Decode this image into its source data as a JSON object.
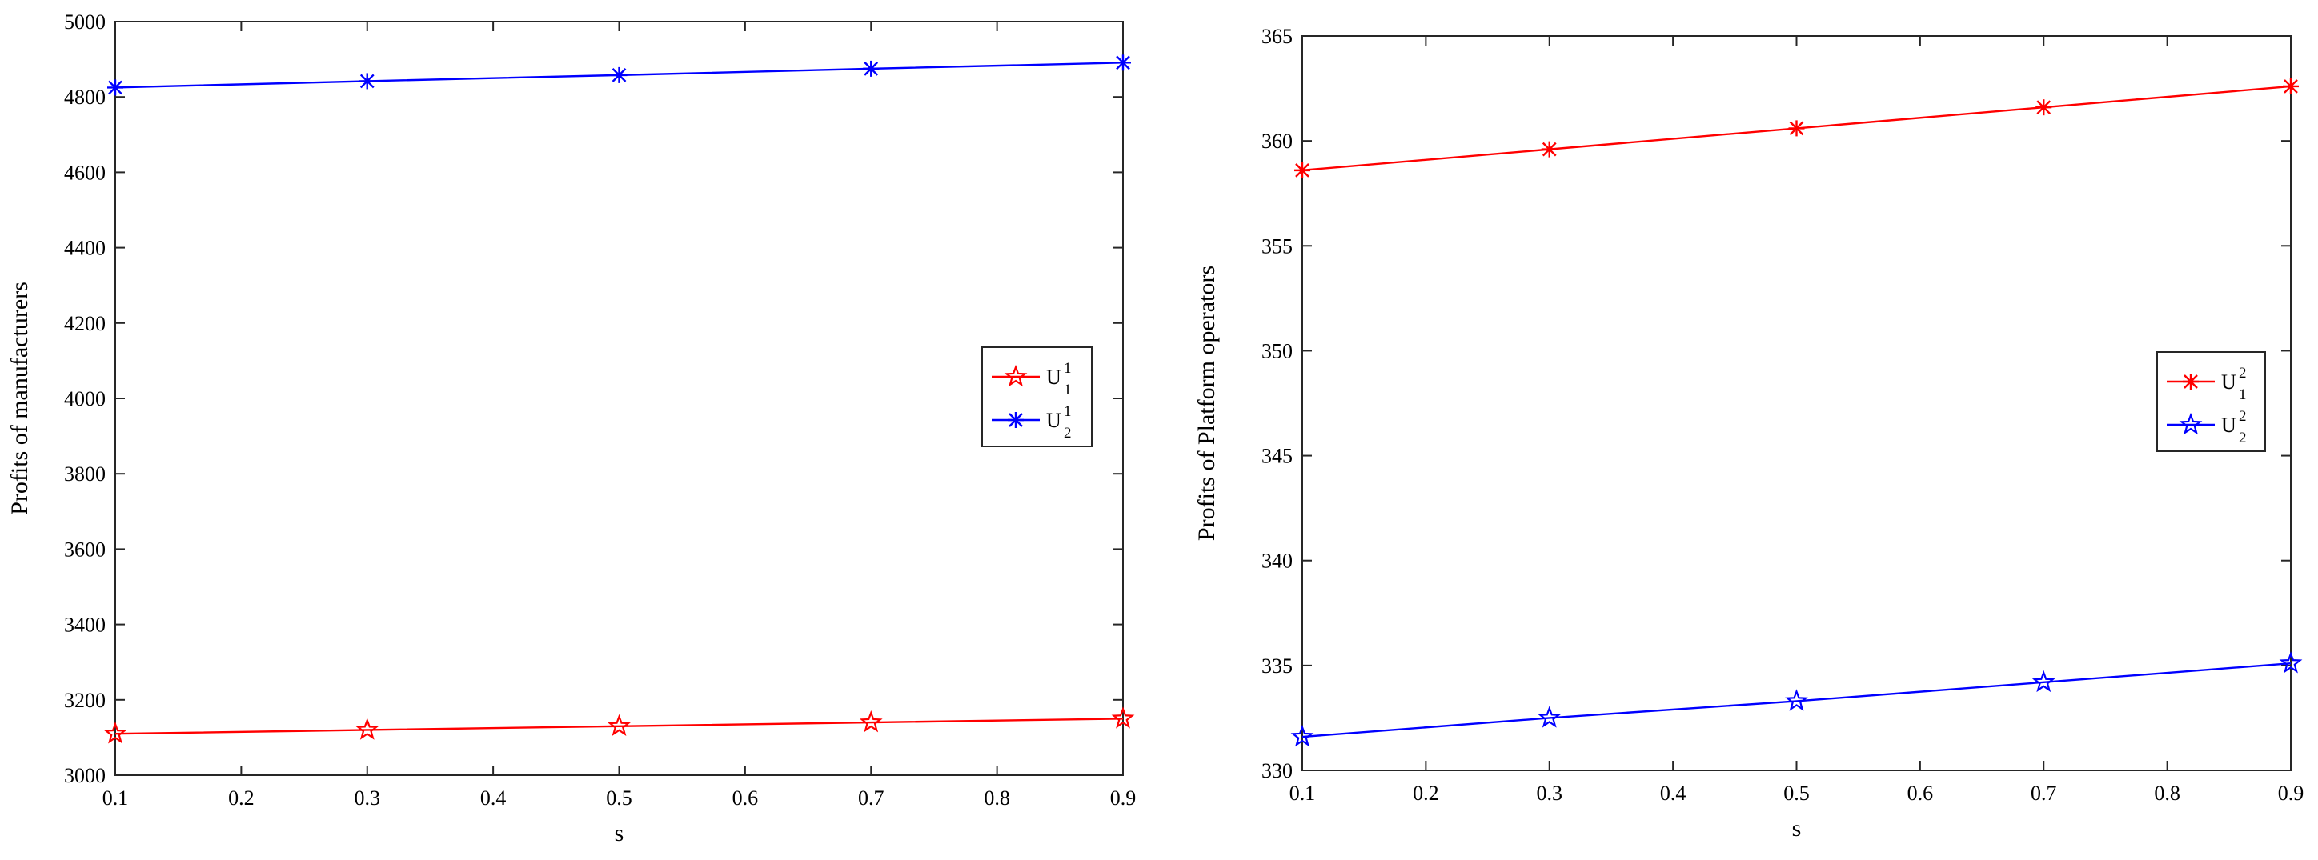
{
  "chart_data": [
    {
      "type": "line",
      "title": "",
      "xlabel": "s",
      "ylabel": "Profits of manufacturers",
      "x": [
        0.1,
        0.3,
        0.5,
        0.7,
        0.9
      ],
      "xlim": [
        0.1,
        0.9
      ],
      "ylim": [
        3000,
        5000
      ],
      "xticks": [
        "0.1",
        "0.2",
        "0.3",
        "0.4",
        "0.5",
        "0.6",
        "0.7",
        "0.8",
        "0.9"
      ],
      "yticks": [
        "3000",
        "3200",
        "3400",
        "3600",
        "3800",
        "4000",
        "4200",
        "4400",
        "4600",
        "4800",
        "5000"
      ],
      "grid": false,
      "legend_position": "right",
      "series": [
        {
          "name": "U",
          "sub": "1",
          "sup": "1",
          "color": "#ff0000",
          "marker": "pentagram",
          "values": [
            3110,
            3120,
            3130,
            3140,
            3150
          ]
        },
        {
          "name": "U",
          "sub": "2",
          "sup": "1",
          "color": "#0000ff",
          "marker": "asterisk",
          "values": [
            4825,
            4842,
            4858,
            4875,
            4891
          ]
        }
      ]
    },
    {
      "type": "line",
      "title": "",
      "xlabel": "s",
      "ylabel": "Profits of Platform operators",
      "x": [
        0.1,
        0.3,
        0.5,
        0.7,
        0.9
      ],
      "xlim": [
        0.1,
        0.9
      ],
      "ylim": [
        330,
        365
      ],
      "xticks": [
        "0.1",
        "0.2",
        "0.3",
        "0.4",
        "0.5",
        "0.6",
        "0.7",
        "0.8",
        "0.9"
      ],
      "yticks": [
        "330",
        "335",
        "340",
        "345",
        "350",
        "355",
        "360",
        "365"
      ],
      "grid": false,
      "legend_position": "right",
      "series": [
        {
          "name": "U",
          "sub": "1",
          "sup": "2",
          "color": "#ff0000",
          "marker": "asterisk",
          "values": [
            358.6,
            359.6,
            360.6,
            361.6,
            362.6
          ]
        },
        {
          "name": "U",
          "sub": "2",
          "sup": "2",
          "color": "#0000ff",
          "marker": "pentagram",
          "values": [
            331.6,
            332.5,
            333.3,
            334.2,
            335.1
          ]
        }
      ]
    }
  ]
}
